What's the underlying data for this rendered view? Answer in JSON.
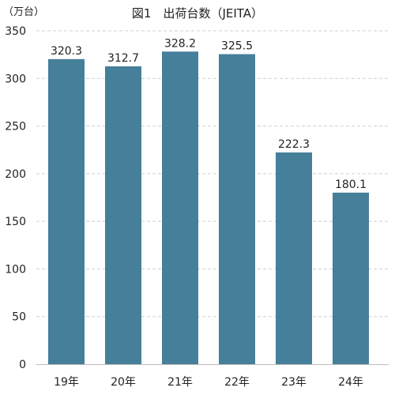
{
  "chart_data": {
    "type": "bar",
    "title": "図1　出荷台数（JEITA）",
    "unit_label": "（万台）",
    "categories": [
      "19年",
      "20年",
      "21年",
      "22年",
      "23年",
      "24年"
    ],
    "values": [
      320.3,
      312.7,
      328.2,
      325.5,
      222.3,
      180.1
    ],
    "value_labels": [
      "320.3",
      "312.7",
      "328.2",
      "325.5",
      "222.3",
      "180.1"
    ],
    "ylim": [
      0,
      350
    ],
    "yticks": [
      0,
      50,
      100,
      150,
      200,
      250,
      300,
      350
    ],
    "ytick_labels": [
      "0",
      "50",
      "100",
      "150",
      "200",
      "250",
      "300",
      "350"
    ],
    "grid": true,
    "bar_color": "#457f99"
  }
}
